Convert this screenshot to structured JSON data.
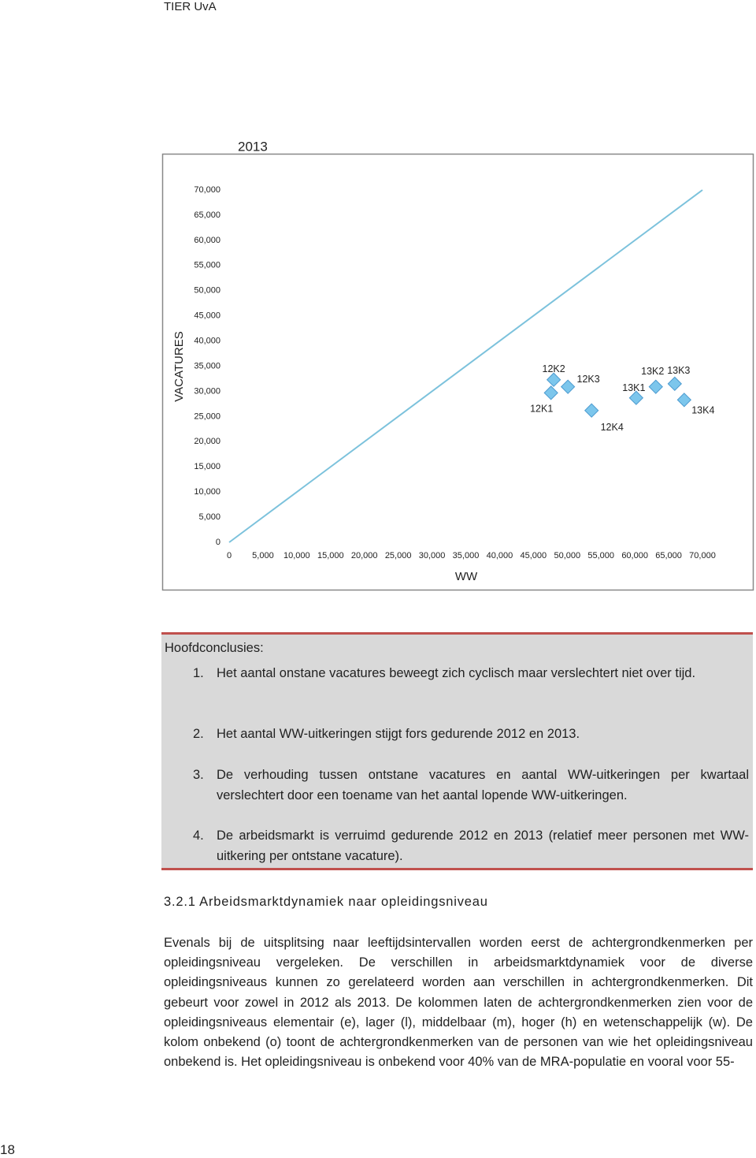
{
  "header": "TIER UvA",
  "chart_data": {
    "type": "scatter",
    "title": "2013",
    "x_label": "WW",
    "y_label": "VACATURES",
    "xlim": [
      0,
      70000
    ],
    "ylim": [
      0,
      70000
    ],
    "xticks": [
      0,
      {
        "value": 5000,
        "label": "5,000"
      },
      {
        "value": 10000,
        "label": "10,000"
      },
      {
        "value": 15000,
        "label": "15,000"
      },
      {
        "value": 20000,
        "label": "20,000"
      },
      {
        "value": 25000,
        "label": "25,000"
      },
      {
        "value": 30000,
        "label": "30,000"
      },
      {
        "value": 35000,
        "label": "35,000"
      },
      {
        "value": 40000,
        "label": "40,000"
      },
      {
        "value": 45000,
        "label": "45,000"
      },
      {
        "value": 50000,
        "label": "50,000"
      },
      {
        "value": 55000,
        "label": "55,000"
      },
      {
        "value": 60000,
        "label": "60,000"
      },
      {
        "value": 65000,
        "label": "65,000"
      },
      {
        "value": 70000,
        "label": "70,000"
      }
    ],
    "yticks": [
      0,
      {
        "value": 5000,
        "label": "5,000"
      },
      {
        "value": 10000,
        "label": "10,000"
      },
      {
        "value": 15000,
        "label": "15,000"
      },
      {
        "value": 20000,
        "label": "20,000"
      },
      {
        "value": 25000,
        "label": "25,000"
      },
      {
        "value": 30000,
        "label": "30,000"
      },
      {
        "value": 35000,
        "label": "35,000"
      },
      {
        "value": 40000,
        "label": "40,000"
      },
      {
        "value": 45000,
        "label": "45,000"
      },
      {
        "value": 50000,
        "label": "50,000"
      },
      {
        "value": 55000,
        "label": "55,000"
      },
      {
        "value": 60000,
        "label": "60,000"
      },
      {
        "value": 65000,
        "label": "65,000"
      },
      {
        "value": 70000,
        "label": "70,000"
      }
    ],
    "points": {
      "color": "#7cc6ec",
      "labels": [
        "12K1",
        "12K2",
        "12K3",
        "12K4",
        "13K1",
        "13K2",
        "13K3",
        "13K4"
      ],
      "x": [
        47600,
        48000,
        50100,
        53600,
        60200,
        63100,
        65900,
        67300
      ],
      "y": [
        29700,
        32300,
        30900,
        26200,
        28700,
        30900,
        31500,
        28300
      ]
    },
    "line": {
      "color": "#7cc2dc",
      "x": [
        0,
        70000
      ],
      "y": [
        0,
        70000
      ]
    }
  },
  "conclusions": {
    "title": "Hoofdconclusies:",
    "items": [
      {
        "number": "1.",
        "text": "Het aantal onstane vacatures beweegt zich cyclisch maar verslechtert niet over tijd."
      },
      {
        "number": "2.",
        "text": "Het aantal WW-uitkeringen stijgt fors gedurende 2012 en 2013."
      },
      {
        "number": "3.",
        "text": "De verhouding tussen ontstane vacatures en aantal WW-uitkeringen per kwartaal verslechtert door een toename van het aantal lopende WW-uitkeringen."
      },
      {
        "number": "4.",
        "text": "De arbeidsmarkt is verruimd gedurende 2012 en 2013 (relatief meer personen met WW-uitkering per ontstane vacature)."
      }
    ]
  },
  "section": {
    "heading": "3.2.1 Arbeidsmarktdynamiek naar opleidingsniveau",
    "paragraph": "Evenals bij de uitsplitsing naar leeftijdsintervallen worden eerst de achtergrondkenmerken per opleidingsniveau vergeleken. De verschillen in arbeidsmarktdynamiek voor de diverse opleidingsniveaus kunnen zo gerelateerd worden aan verschillen in achtergrondkenmerken. Dit gebeurt voor zowel in 2012 als 2013. De kolommen laten de achtergrondkenmerken zien voor de opleidingsniveaus elementair (e), lager (l), middelbaar (m), hoger (h) en wetenschappelijk (w). De kolom onbekend (o) toont de achtergrondkenmerken van de personen van wie het opleidingsniveau onbekend is. Het opleidingsniveau is onbekend voor 40% van de MRA-populatie en vooral voor 55-"
  },
  "page_number": "18"
}
